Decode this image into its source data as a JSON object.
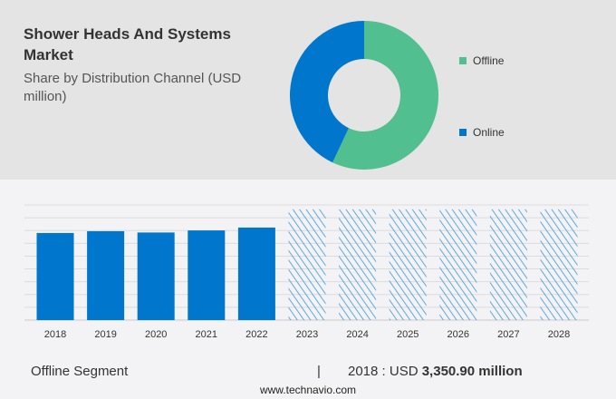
{
  "header": {
    "title": "Shower Heads And Systems Market",
    "subtitle": "Share by Distribution Channel (USD million)"
  },
  "colors": {
    "offline": "#52bf90",
    "online": "#0077cc",
    "bar": "#0077cc",
    "forecast_hatch": "#3a95dd"
  },
  "chart_data": [
    {
      "type": "pie",
      "donut": true,
      "labels": [
        "Offline",
        "Online"
      ],
      "values": [
        57,
        43
      ],
      "legend": "right"
    },
    {
      "type": "bar",
      "categories": [
        "2018",
        "2019",
        "2020",
        "2021",
        "2022",
        "2023",
        "2024",
        "2025",
        "2026",
        "2027",
        "2028"
      ],
      "values": [
        3350.9,
        3420,
        3370,
        3450,
        3560,
        4260,
        4260,
        4260,
        4260,
        4260,
        4260
      ],
      "forecast_from": "2023",
      "ylim": [
        0,
        4430
      ],
      "grid": true
    }
  ],
  "footer": {
    "segment": "Offline Segment",
    "divider": "|",
    "year_label": "2018 : USD",
    "value": "3,350.90 million",
    "source": "www.technavio.com"
  }
}
